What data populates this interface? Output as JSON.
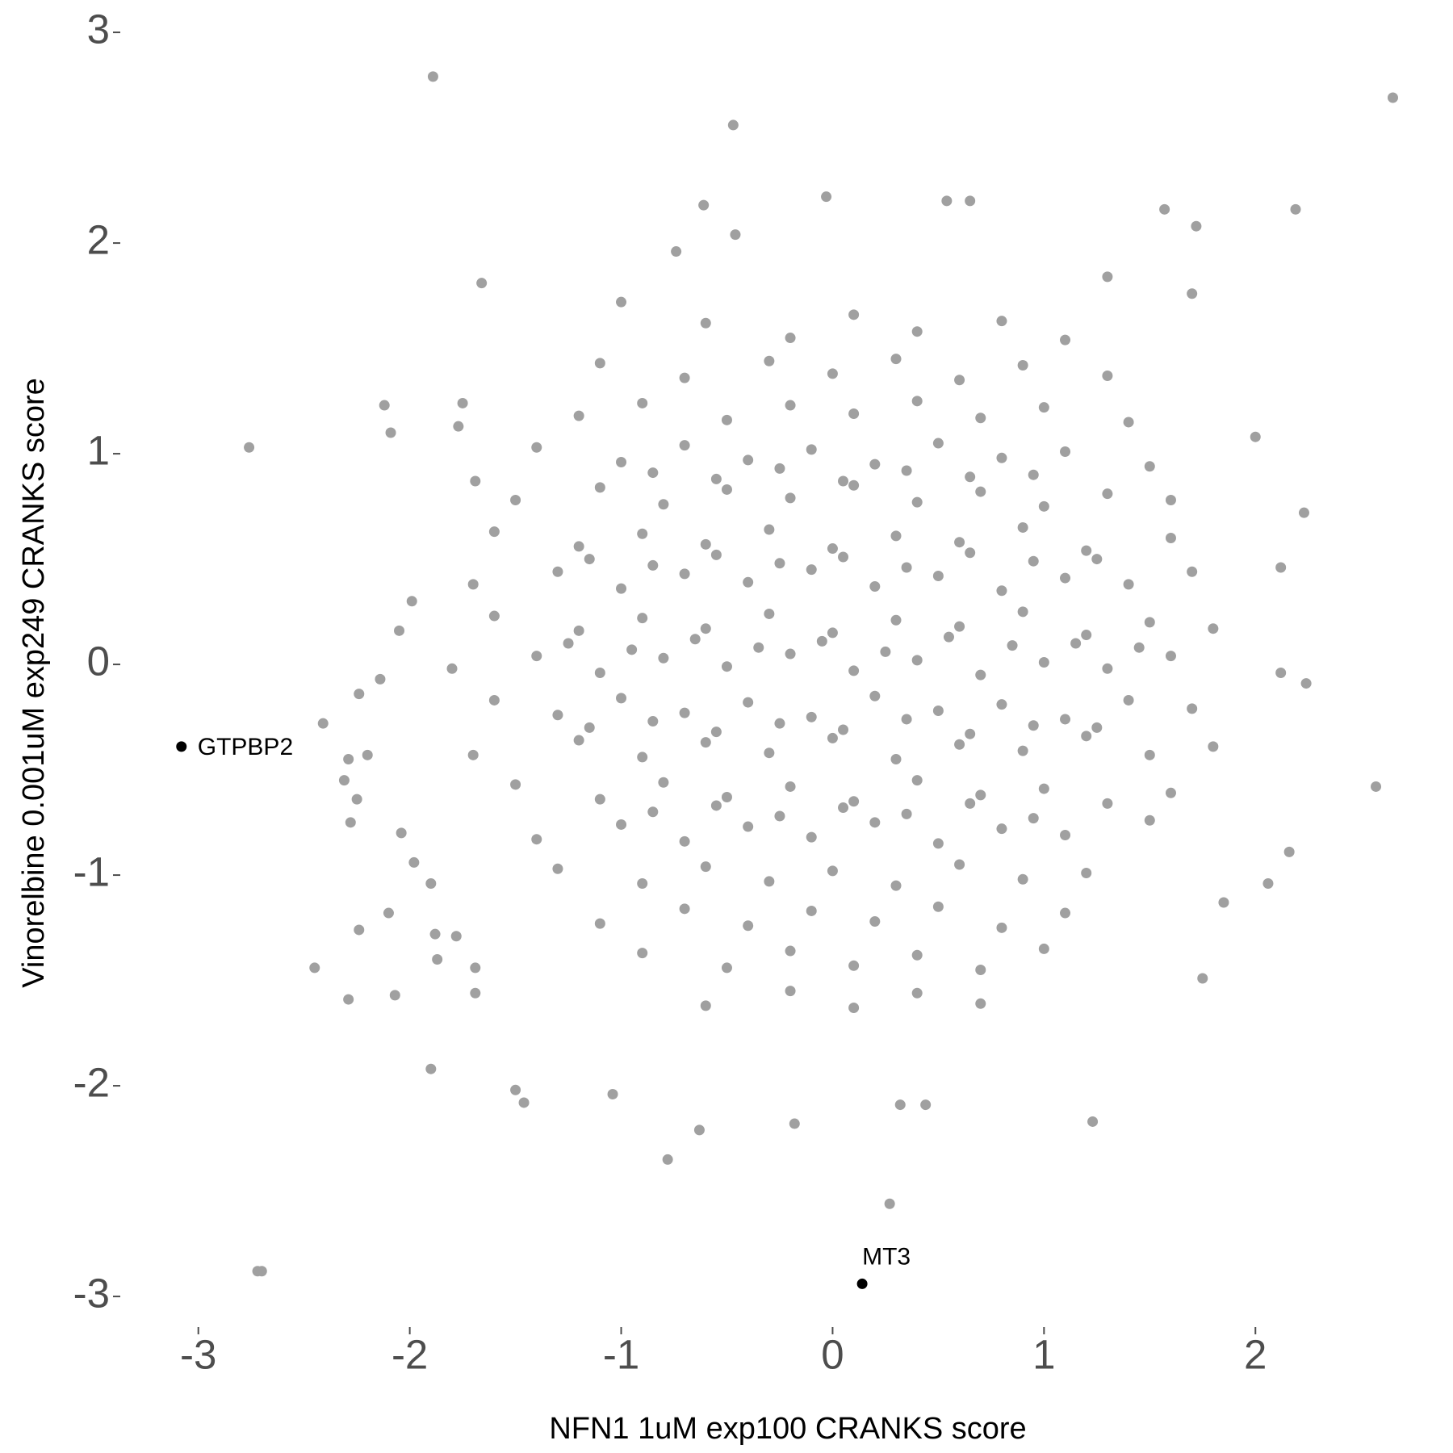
{
  "chart_data": {
    "type": "scatter",
    "x_label": "NFN1 1uM exp100 CRANKS score",
    "y_label": "Vinorelbine 0.001uM exp249 CRANKS score",
    "color": "#a0a0a0",
    "highlight_color": "#000000",
    "grid": false,
    "xlim": [
      -3.27,
      2.82
    ],
    "ylim": [
      -3.13,
      3.1
    ],
    "xticks": [
      -3,
      -2,
      -1,
      0,
      1,
      2
    ],
    "yticks": [
      -3,
      -2,
      -1,
      0,
      1,
      2,
      3
    ],
    "annotations": [
      {
        "text": "GTPBP2",
        "x": -3.08,
        "y": -0.39
      },
      {
        "text": "MT3",
        "x": 0.14,
        "y": -2.94
      }
    ],
    "x": [
      -1.89,
      2.65,
      -0.47,
      -0.03,
      -0.61,
      0.54,
      0.65,
      1.57,
      2.19,
      1.72,
      -0.46,
      -0.74,
      -1.66,
      1.7,
      1.3,
      -1.0,
      -2.12,
      -1.75,
      -2.76,
      -2.09,
      -1.77,
      -1.69,
      2.0,
      2.23,
      2.12,
      2.24,
      2.12,
      2.57,
      2.16,
      2.06,
      1.85,
      1.75,
      1.23,
      0.27,
      0.32,
      0.44,
      -0.63,
      -0.78,
      -0.18,
      -1.5,
      -1.46,
      -1.04,
      -1.9,
      -2.72,
      -2.7,
      -2.29,
      -2.45,
      -2.24,
      -2.07,
      -2.1,
      -2.41,
      -2.29,
      -2.2,
      -2.31,
      -2.25,
      -2.28,
      -2.14,
      -2.24,
      -2.04,
      -1.98,
      -1.99,
      -2.05,
      -1.9,
      -1.88,
      -1.87,
      -1.69,
      -1.69,
      -1.78,
      -0.6,
      -0.2,
      0.1,
      0.4,
      0.8,
      1.1,
      -1.1,
      -0.7,
      -0.3,
      0.0,
      0.3,
      0.6,
      0.9,
      1.3,
      -1.2,
      -0.9,
      -0.5,
      -0.2,
      0.1,
      0.4,
      0.7,
      1.0,
      1.4,
      -1.4,
      -1.0,
      -0.7,
      -0.4,
      -0.1,
      0.2,
      0.5,
      0.8,
      1.1,
      1.5,
      -1.5,
      -1.1,
      -0.8,
      -0.5,
      -0.2,
      0.1,
      0.4,
      0.7,
      1.0,
      1.3,
      1.6,
      -1.6,
      -1.2,
      -0.9,
      -0.6,
      -0.3,
      0.0,
      0.3,
      0.6,
      0.9,
      1.2,
      1.6,
      -1.7,
      -1.3,
      -1.0,
      -0.7,
      -0.4,
      -0.1,
      0.2,
      0.5,
      0.8,
      1.1,
      1.4,
      1.7,
      -1.6,
      -1.2,
      -0.9,
      -0.6,
      -0.3,
      0.0,
      0.3,
      0.6,
      0.9,
      1.2,
      1.5,
      1.8,
      -1.8,
      -1.4,
      -1.1,
      -0.8,
      -0.5,
      -0.2,
      0.1,
      0.4,
      0.7,
      1.0,
      1.3,
      1.6,
      -1.6,
      -1.3,
      -1.0,
      -0.7,
      -0.4,
      -0.1,
      0.2,
      0.5,
      0.8,
      1.1,
      1.4,
      1.7,
      -1.7,
      -1.2,
      -0.9,
      -0.6,
      -0.3,
      0.0,
      0.3,
      0.6,
      0.9,
      1.2,
      1.5,
      1.8,
      -1.5,
      -1.1,
      -0.8,
      -0.5,
      -0.2,
      0.1,
      0.4,
      0.7,
      1.0,
      1.3,
      1.6,
      -1.4,
      -1.0,
      -0.7,
      -0.4,
      -0.1,
      0.2,
      0.5,
      0.8,
      1.1,
      1.5,
      -1.3,
      -0.9,
      -0.6,
      -0.3,
      0.0,
      0.3,
      0.6,
      0.9,
      1.2,
      -1.1,
      -0.7,
      -0.4,
      -0.1,
      0.2,
      0.5,
      0.8,
      1.1,
      -0.9,
      -0.5,
      -0.2,
      0.1,
      0.4,
      0.7,
      1.0,
      -0.6,
      -0.2,
      0.1,
      0.4,
      0.7,
      -0.85,
      -0.55,
      -0.25,
      0.05,
      0.35,
      0.65,
      0.95,
      -1.15,
      -0.85,
      -0.55,
      -0.25,
      0.05,
      0.35,
      0.65,
      0.95,
      1.25,
      -1.25,
      -0.95,
      -0.65,
      -0.35,
      -0.05,
      0.25,
      0.55,
      0.85,
      1.15,
      1.45,
      -1.15,
      -0.85,
      -0.55,
      -0.25,
      0.05,
      0.35,
      0.65,
      0.95,
      1.25,
      -0.85,
      -0.55,
      -0.25,
      0.05,
      0.35,
      0.65,
      0.95
    ],
    "values": [
      2.79,
      2.69,
      2.56,
      2.22,
      2.18,
      2.2,
      2.2,
      2.16,
      2.16,
      2.08,
      2.04,
      1.96,
      1.81,
      1.76,
      1.84,
      1.72,
      1.23,
      1.24,
      1.03,
      1.1,
      1.13,
      0.87,
      1.08,
      0.72,
      0.46,
      -0.09,
      -0.04,
      -0.58,
      -0.89,
      -1.04,
      -1.13,
      -1.49,
      -2.17,
      -2.56,
      -2.09,
      -2.09,
      -2.21,
      -2.35,
      -2.18,
      -2.02,
      -2.08,
      -2.04,
      -1.92,
      -2.88,
      -2.88,
      -1.59,
      -1.44,
      -1.26,
      -1.57,
      -1.18,
      -0.28,
      -0.45,
      -0.43,
      -0.55,
      -0.64,
      -0.75,
      -0.07,
      -0.14,
      -0.8,
      -0.94,
      0.3,
      0.16,
      -1.04,
      -1.28,
      -1.4,
      -1.44,
      -1.56,
      -1.29,
      1.62,
      1.55,
      1.66,
      1.58,
      1.63,
      1.54,
      1.43,
      1.36,
      1.44,
      1.38,
      1.45,
      1.35,
      1.42,
      1.37,
      1.18,
      1.24,
      1.16,
      1.23,
      1.19,
      1.25,
      1.17,
      1.22,
      1.15,
      1.03,
      0.96,
      1.04,
      0.97,
      1.02,
      0.95,
      1.05,
      0.98,
      1.01,
      0.94,
      0.78,
      0.84,
      0.76,
      0.83,
      0.79,
      0.85,
      0.77,
      0.82,
      0.75,
      0.81,
      0.78,
      0.63,
      0.56,
      0.62,
      0.57,
      0.64,
      0.55,
      0.61,
      0.58,
      0.65,
      0.54,
      0.6,
      0.38,
      0.44,
      0.36,
      0.43,
      0.39,
      0.45,
      0.37,
      0.42,
      0.35,
      0.41,
      0.38,
      0.44,
      0.23,
      0.16,
      0.22,
      0.17,
      0.24,
      0.15,
      0.21,
      0.18,
      0.25,
      0.14,
      0.2,
      0.17,
      -0.02,
      0.04,
      -0.04,
      0.03,
      -0.01,
      0.05,
      -0.03,
      0.02,
      -0.05,
      0.01,
      -0.02,
      0.04,
      -0.17,
      -0.24,
      -0.16,
      -0.23,
      -0.18,
      -0.25,
      -0.15,
      -0.22,
      -0.19,
      -0.26,
      -0.17,
      -0.21,
      -0.43,
      -0.36,
      -0.44,
      -0.37,
      -0.42,
      -0.35,
      -0.45,
      -0.38,
      -0.41,
      -0.34,
      -0.43,
      -0.39,
      -0.57,
      -0.64,
      -0.56,
      -0.63,
      -0.58,
      -0.65,
      -0.55,
      -0.62,
      -0.59,
      -0.66,
      -0.61,
      -0.83,
      -0.76,
      -0.84,
      -0.77,
      -0.82,
      -0.75,
      -0.85,
      -0.78,
      -0.81,
      -0.74,
      -0.97,
      -1.04,
      -0.96,
      -1.03,
      -0.98,
      -1.05,
      -0.95,
      -1.02,
      -0.99,
      -1.23,
      -1.16,
      -1.24,
      -1.17,
      -1.22,
      -1.15,
      -1.25,
      -1.18,
      -1.37,
      -1.44,
      -1.36,
      -1.43,
      -1.38,
      -1.45,
      -1.35,
      -1.62,
      -1.55,
      -1.63,
      -1.56,
      -1.61,
      0.91,
      0.88,
      0.93,
      0.87,
      0.92,
      0.89,
      0.9,
      0.5,
      0.47,
      0.52,
      0.48,
      0.51,
      0.46,
      0.53,
      0.49,
      0.5,
      0.1,
      0.07,
      0.12,
      0.08,
      0.11,
      0.06,
      0.13,
      0.09,
      0.1,
      0.08,
      -0.3,
      -0.27,
      -0.32,
      -0.28,
      -0.31,
      -0.26,
      -0.33,
      -0.29,
      -0.3,
      -0.7,
      -0.67,
      -0.72,
      -0.68,
      -0.71,
      -0.66,
      -0.73
    ]
  }
}
